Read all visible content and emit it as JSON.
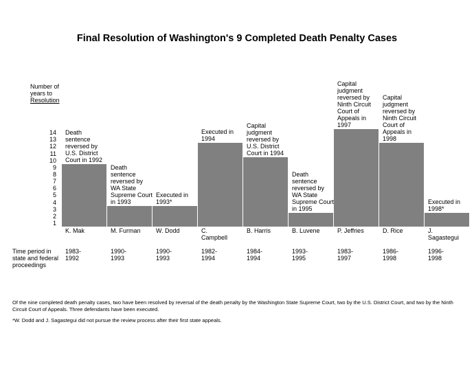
{
  "chart_data": {
    "type": "bar",
    "title": "Final Resolution of Washington's 9 Completed Death Penalty Cases",
    "y_label": "Number of years to",
    "y_label_underlined": "Resolution",
    "categories": [
      "K. Mak",
      "M. Furman",
      "W. Dodd",
      "C. Campbell",
      "B. Harris",
      "B. Luvene",
      "P. Jeffries",
      "D. Rice",
      "J. Sagastegui"
    ],
    "values": [
      9,
      3,
      3,
      12,
      10,
      2,
      14,
      12,
      2
    ],
    "color": "#808080",
    "annotations": [
      "Death sentence reversed by U.S. District Court in 1992",
      "Death sentence reversed by WA State Supreme Court in 1993",
      "Executed in 1993*",
      "Executed in 1994",
      "Capital judgment reversed by U.S. District Court in 1994",
      "Death sentence reversed by WA State Supreme Court in 1995",
      "Capital judgment reversed by Ninth Circuit Court of Appeals in 1997",
      "Capital judgment reversed by Ninth Circuit Court of Appeals in 1998",
      "Executed in 1998*"
    ],
    "period_label": "Time period in state and federal proceedings",
    "periods": [
      "1983-1992",
      "1990-1993",
      "1990-1993",
      "1982-1994",
      "1984-1994",
      "1993-1995",
      "1983-1997",
      "1986-1998",
      "1996-1998"
    ],
    "ylim": [
      0,
      14
    ],
    "yticks": [
      1,
      2,
      3,
      4,
      5,
      6,
      7,
      8,
      9,
      10,
      11,
      12,
      13,
      14
    ],
    "notes": [
      "Of the nine completed death penalty cases, two have been resolved by reversal of the death penalty by the Washington State Supreme Court, two by the U.S. District Court, and two by the Ninth Circuit Court of Appeals. Three defendants have been executed.",
      "*W. Dodd and J. Sagastegui did not pursue the review process after their first state appeals."
    ]
  }
}
